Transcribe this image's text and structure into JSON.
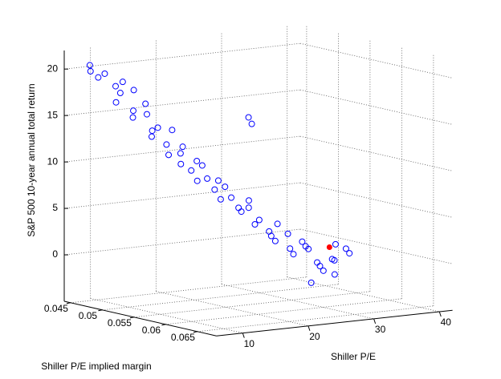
{
  "chart_data": {
    "type": "scatter3d",
    "xlabel": "Shiller P/E",
    "ylabel": "Shiller P/E implied margin",
    "zlabel": "S&P 500 10-year annual total return",
    "xlim": [
      6,
      42
    ],
    "xticks": [
      10,
      20,
      30,
      40
    ],
    "ylim": [
      0.044,
      0.068
    ],
    "yticks": [
      0.045,
      0.05,
      0.055,
      0.06,
      0.065
    ],
    "zlim": [
      -5,
      22
    ],
    "zticks": [
      0,
      5,
      10,
      15,
      20
    ],
    "grid": true,
    "series": [
      {
        "color": "#0000ff",
        "filled": false,
        "x": [
          7.0,
          7.3,
          7.8,
          8.5,
          9.0,
          9.6,
          10.2,
          10.8,
          11.0,
          11.5,
          12.1,
          12.6,
          13.0,
          13.5,
          14.1,
          14.7,
          15.2,
          15.6,
          16.0,
          16.6,
          17.1,
          17.5,
          18.0,
          18.6,
          19.1,
          19.5,
          20.0,
          20.6,
          21.2,
          21.8,
          22.3,
          22.9,
          23.4,
          24.0,
          24.5,
          25.1,
          25.6,
          26.2,
          26.8,
          27.3,
          27.9,
          28.5,
          29.0,
          29.6,
          30.2,
          30.8,
          31.4,
          32.0,
          32.6,
          33.2,
          33.8,
          34.4,
          35.0,
          35.6,
          36.2,
          36.8,
          37.4,
          34.0,
          22.5,
          22.8
        ],
        "y": [
          0.047,
          0.0468,
          0.0475,
          0.0478,
          0.049,
          0.0495,
          0.0485,
          0.05,
          0.047,
          0.0492,
          0.0505,
          0.048,
          0.0498,
          0.051,
          0.0495,
          0.0488,
          0.0515,
          0.0502,
          0.052,
          0.0495,
          0.0512,
          0.0505,
          0.0525,
          0.051,
          0.053,
          0.0518,
          0.0505,
          0.0532,
          0.052,
          0.054,
          0.0525,
          0.0512,
          0.0535,
          0.0545,
          0.0528,
          0.055,
          0.0538,
          0.0522,
          0.0548,
          0.0556,
          0.054,
          0.056,
          0.0535,
          0.0552,
          0.0565,
          0.0545,
          0.0558,
          0.057,
          0.055,
          0.0562,
          0.0575,
          0.0555,
          0.0568,
          0.056,
          0.0572,
          0.0548,
          0.0565,
          0.054,
          0.056,
          0.0562
        ],
        "z": [
          20.8,
          20.1,
          19.5,
          19.9,
          18.7,
          19.2,
          17.8,
          18.3,
          16.5,
          15.9,
          16.8,
          14.9,
          15.5,
          14.2,
          13.6,
          12.8,
          13.9,
          12.1,
          11.4,
          10.8,
          11.9,
          9.9,
          10.5,
          9.2,
          8.6,
          9.8,
          7.9,
          8.3,
          7.1,
          6.5,
          7.4,
          5.8,
          5.2,
          6.1,
          4.6,
          4.0,
          3.3,
          4.8,
          2.6,
          3.5,
          1.9,
          2.4,
          1.2,
          0.6,
          1.5,
          -0.2,
          0.8,
          -0.8,
          0.3,
          -1.4,
          -0.5,
          -2.1,
          0.9,
          -1.0,
          0.4,
          -2.8,
          -0.3,
          -3.6,
          15.4,
          14.7
        ]
      },
      {
        "color": "#ff0000",
        "filled": true,
        "x": [
          36.0
        ],
        "y": [
          0.0548
        ],
        "z": [
          0.2
        ]
      }
    ]
  }
}
